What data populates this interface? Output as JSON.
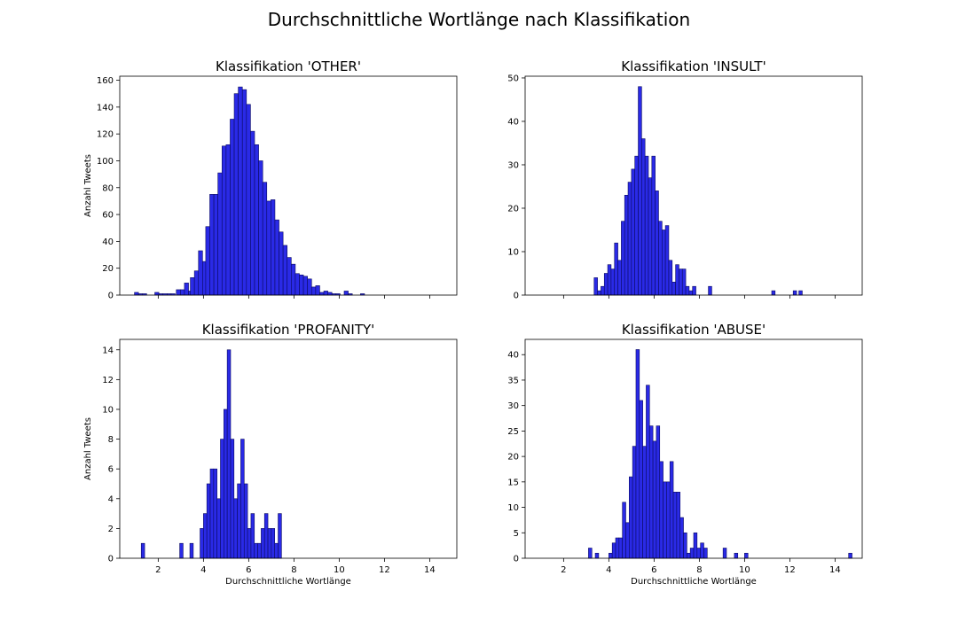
{
  "figure_title": "Durchschnittliche Wortlänge nach Klassifikation",
  "bar_color": "#2a2ae6",
  "edge_color": "#0a0a60",
  "chart_data": [
    {
      "type": "bar",
      "title": "Klassifikation 'OTHER'",
      "xlabel": "",
      "ylabel": "Anzahl Tweets",
      "xlim": [
        0.3,
        15.2
      ],
      "ylim": [
        0,
        163
      ],
      "xticks": [
        2,
        4,
        6,
        8,
        10,
        12,
        14
      ],
      "show_xtick_labels": false,
      "yticks": [
        0,
        20,
        40,
        60,
        80,
        100,
        120,
        140,
        160
      ],
      "bin_width": 0.18,
      "bins": [
        [
          0.95,
          2
        ],
        [
          1.13,
          1
        ],
        [
          1.31,
          1
        ],
        [
          1.85,
          2
        ],
        [
          2.03,
          1
        ],
        [
          2.21,
          1
        ],
        [
          2.39,
          1
        ],
        [
          2.57,
          1
        ],
        [
          2.8,
          4
        ],
        [
          2.98,
          4
        ],
        [
          3.16,
          9
        ],
        [
          3.34,
          3
        ],
        [
          3.42,
          13
        ],
        [
          3.6,
          18
        ],
        [
          3.78,
          33
        ],
        [
          3.96,
          25
        ],
        [
          4.1,
          51
        ],
        [
          4.28,
          75
        ],
        [
          4.46,
          75
        ],
        [
          4.64,
          91
        ],
        [
          4.82,
          111
        ],
        [
          5.0,
          112
        ],
        [
          5.18,
          131
        ],
        [
          5.36,
          150
        ],
        [
          5.54,
          155
        ],
        [
          5.72,
          153
        ],
        [
          5.9,
          142
        ],
        [
          6.08,
          122
        ],
        [
          6.26,
          112
        ],
        [
          6.44,
          100
        ],
        [
          6.62,
          84
        ],
        [
          6.8,
          70
        ],
        [
          6.98,
          71
        ],
        [
          7.16,
          56
        ],
        [
          7.34,
          47
        ],
        [
          7.52,
          37
        ],
        [
          7.7,
          28
        ],
        [
          7.88,
          23
        ],
        [
          8.06,
          16
        ],
        [
          8.24,
          15
        ],
        [
          8.42,
          14
        ],
        [
          8.6,
          12
        ],
        [
          8.78,
          6
        ],
        [
          8.96,
          7
        ],
        [
          9.14,
          2
        ],
        [
          9.32,
          3
        ],
        [
          9.5,
          2
        ],
        [
          9.68,
          1
        ],
        [
          9.86,
          1
        ],
        [
          10.22,
          3
        ],
        [
          10.4,
          1
        ],
        [
          10.94,
          1
        ]
      ]
    },
    {
      "type": "bar",
      "title": "Klassifikation 'INSULT'",
      "xlabel": "",
      "ylabel": "",
      "xlim": [
        0.3,
        15.2
      ],
      "ylim": [
        0,
        50.4
      ],
      "xticks": [
        2,
        4,
        6,
        8,
        10,
        12,
        14
      ],
      "show_xtick_labels": false,
      "yticks": [
        0,
        10,
        20,
        30,
        40,
        50
      ],
      "bin_width": 0.15,
      "bins": [
        [
          3.35,
          4
        ],
        [
          3.5,
          1
        ],
        [
          3.65,
          2
        ],
        [
          3.8,
          5
        ],
        [
          3.95,
          7
        ],
        [
          4.1,
          6
        ],
        [
          4.25,
          12
        ],
        [
          4.4,
          8
        ],
        [
          4.55,
          17
        ],
        [
          4.7,
          23
        ],
        [
          4.85,
          26
        ],
        [
          5.0,
          29
        ],
        [
          5.15,
          32
        ],
        [
          5.3,
          48
        ],
        [
          5.45,
          36
        ],
        [
          5.6,
          32
        ],
        [
          5.75,
          27
        ],
        [
          5.9,
          32
        ],
        [
          6.05,
          24
        ],
        [
          6.2,
          17
        ],
        [
          6.35,
          15
        ],
        [
          6.5,
          16
        ],
        [
          6.65,
          8
        ],
        [
          6.8,
          3
        ],
        [
          6.95,
          7
        ],
        [
          7.1,
          6
        ],
        [
          7.25,
          6
        ],
        [
          7.4,
          2
        ],
        [
          7.55,
          1
        ],
        [
          7.7,
          2
        ],
        [
          8.4,
          2
        ],
        [
          11.2,
          1
        ],
        [
          12.15,
          1
        ],
        [
          12.4,
          1
        ]
      ]
    },
    {
      "type": "bar",
      "title": "Klassifikation 'PROFANITY'",
      "xlabel": "Durchschnittliche Wortlänge",
      "ylabel": "Anzahl Tweets",
      "xlim": [
        0.3,
        15.2
      ],
      "ylim": [
        0,
        14.7
      ],
      "xticks": [
        2,
        4,
        6,
        8,
        10,
        12,
        14
      ],
      "show_xtick_labels": true,
      "yticks": [
        0,
        2,
        4,
        6,
        8,
        10,
        12,
        14
      ],
      "bin_width": 0.15,
      "bins": [
        [
          1.25,
          1
        ],
        [
          2.95,
          1
        ],
        [
          3.4,
          1
        ],
        [
          3.85,
          2
        ],
        [
          4.0,
          3
        ],
        [
          4.15,
          5
        ],
        [
          4.3,
          6
        ],
        [
          4.45,
          6
        ],
        [
          4.6,
          4
        ],
        [
          4.75,
          8
        ],
        [
          4.9,
          10
        ],
        [
          5.05,
          14
        ],
        [
          5.2,
          8
        ],
        [
          5.35,
          4
        ],
        [
          5.5,
          5
        ],
        [
          5.65,
          8
        ],
        [
          5.8,
          5
        ],
        [
          5.95,
          2
        ],
        [
          6.1,
          3
        ],
        [
          6.25,
          1
        ],
        [
          6.4,
          1
        ],
        [
          6.55,
          2
        ],
        [
          6.7,
          3
        ],
        [
          6.85,
          2
        ],
        [
          7.0,
          2
        ],
        [
          7.15,
          1
        ],
        [
          7.3,
          3
        ]
      ]
    },
    {
      "type": "bar",
      "title": "Klassifikation 'ABUSE'",
      "xlabel": "Durchschnittliche Wortlänge",
      "ylabel": "",
      "xlim": [
        0.3,
        15.2
      ],
      "ylim": [
        0,
        43
      ],
      "xticks": [
        2,
        4,
        6,
        8,
        10,
        12,
        14
      ],
      "show_xtick_labels": true,
      "yticks": [
        0,
        5,
        10,
        15,
        20,
        25,
        30,
        35,
        40
      ],
      "bin_width": 0.15,
      "bins": [
        [
          3.1,
          2
        ],
        [
          3.4,
          1
        ],
        [
          4.0,
          1
        ],
        [
          4.15,
          3
        ],
        [
          4.3,
          4
        ],
        [
          4.45,
          4
        ],
        [
          4.6,
          11
        ],
        [
          4.75,
          7
        ],
        [
          4.9,
          16
        ],
        [
          5.05,
          22
        ],
        [
          5.2,
          41
        ],
        [
          5.35,
          31
        ],
        [
          5.5,
          22
        ],
        [
          5.65,
          34
        ],
        [
          5.8,
          26
        ],
        [
          5.95,
          23
        ],
        [
          6.1,
          26
        ],
        [
          6.25,
          19
        ],
        [
          6.4,
          15
        ],
        [
          6.55,
          15
        ],
        [
          6.7,
          19
        ],
        [
          6.85,
          13
        ],
        [
          7.0,
          13
        ],
        [
          7.15,
          8
        ],
        [
          7.3,
          5
        ],
        [
          7.45,
          1
        ],
        [
          7.6,
          2
        ],
        [
          7.75,
          5
        ],
        [
          7.9,
          2
        ],
        [
          8.05,
          3
        ],
        [
          8.2,
          2
        ],
        [
          9.05,
          2
        ],
        [
          9.55,
          1
        ],
        [
          10.0,
          1
        ],
        [
          14.6,
          1
        ]
      ]
    }
  ]
}
